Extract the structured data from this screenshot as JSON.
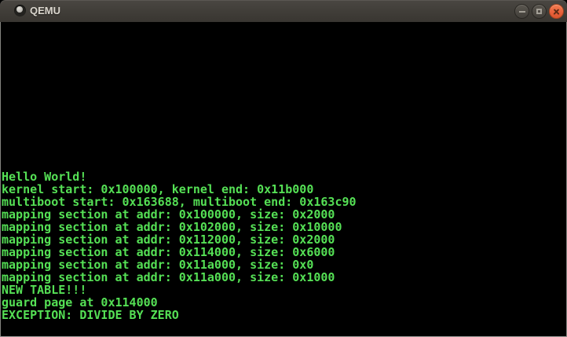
{
  "window": {
    "title": "QEMU",
    "controls": {
      "minimize_label": "minimize",
      "maximize_label": "maximize",
      "close_label": "close"
    }
  },
  "icons": {
    "window_icon": "dot-circle",
    "minimize": "minus",
    "maximize": "square-outline",
    "close": "x-cross"
  },
  "colors": {
    "terminal_text_green": "#55e055",
    "terminal_background": "#000000",
    "titlebar_top": "#4a4742",
    "titlebar_bottom": "#393631",
    "close_button_orange": "#e9603a",
    "window_border": "#84847f"
  },
  "terminal": {
    "lines": [
      "Hello World!",
      "kernel start: 0x100000, kernel end: 0x11b000",
      "multiboot start: 0x163688, multiboot end: 0x163c90",
      "mapping section at addr: 0x100000, size: 0x2000",
      "mapping section at addr: 0x102000, size: 0x10000",
      "mapping section at addr: 0x112000, size: 0x2000",
      "mapping section at addr: 0x114000, size: 0x6000",
      "mapping section at addr: 0x11a000, size: 0x0",
      "mapping section at addr: 0x11a000, size: 0x1000",
      "NEW TABLE!!!",
      "guard page at 0x114000",
      "EXCEPTION: DIVIDE BY ZERO"
    ]
  }
}
